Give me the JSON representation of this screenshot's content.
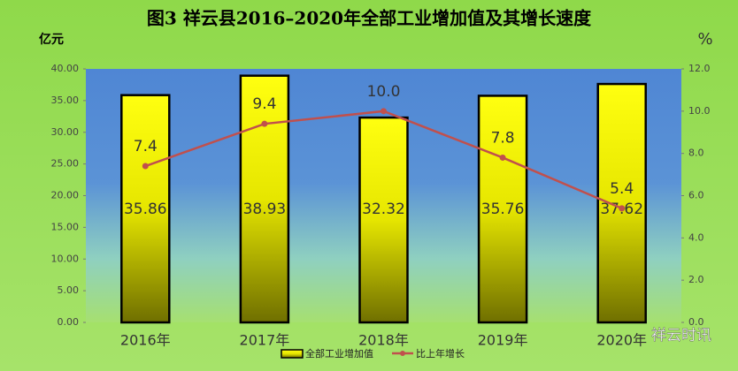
{
  "chart_data": {
    "type": "bar",
    "title": "图3  祥云县2016–2020年全部工业增加值及其增长速度",
    "y_label": "亿元",
    "y2_label": "%",
    "categories": [
      "2016年",
      "2017年",
      "2018年",
      "2019年",
      "2020年"
    ],
    "series": [
      {
        "name": "全部工业增加值",
        "type": "bar",
        "color": "#f2f200",
        "values": [
          35.86,
          38.93,
          32.32,
          35.76,
          37.62
        ]
      },
      {
        "name": "比上年增长",
        "type": "line",
        "axis": "y2",
        "color": "#c0504d",
        "values": [
          7.4,
          9.4,
          10.0,
          7.8,
          5.4
        ],
        "value_labels": [
          "7.4",
          "9.4",
          "10.0",
          "7.8",
          "5.4"
        ]
      }
    ],
    "ylim": [
      0,
      40
    ],
    "yticks": [
      {
        "value": 0,
        "label": "0.00"
      },
      {
        "value": 5,
        "label": "5.00"
      },
      {
        "value": 10,
        "label": "10.00"
      },
      {
        "value": 15,
        "label": "15.00"
      },
      {
        "value": 20,
        "label": "20.00"
      },
      {
        "value": 25,
        "label": "25.00"
      },
      {
        "value": 30,
        "label": "30.00"
      },
      {
        "value": 35,
        "label": "35.00"
      },
      {
        "value": 40,
        "label": "40.00"
      }
    ],
    "y2lim": [
      0,
      12
    ],
    "y2ticks": [
      {
        "value": 0,
        "label": "0.0"
      },
      {
        "value": 2,
        "label": "2.0"
      },
      {
        "value": 4,
        "label": "4.0"
      },
      {
        "value": 6,
        "label": "6.0"
      },
      {
        "value": 8,
        "label": "8.0"
      },
      {
        "value": 10,
        "label": "10.0"
      },
      {
        "value": 12,
        "label": "12.0"
      }
    ],
    "legend": "bottom",
    "watermark": "祥云时讯"
  }
}
